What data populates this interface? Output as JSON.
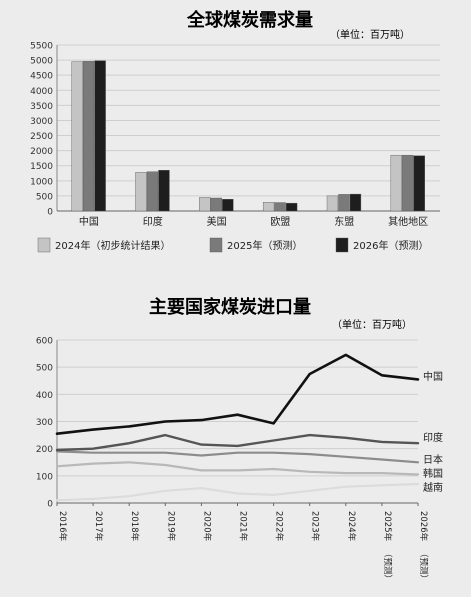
{
  "chart_data": [
    {
      "type": "bar",
      "title": "全球煤炭需求量",
      "unit_note": "（单位：百万吨）",
      "categories": [
        "中国",
        "印度",
        "美国",
        "欧盟",
        "东盟",
        "其他地区"
      ],
      "ylim": [
        0,
        5500
      ],
      "yticks": [
        0,
        500,
        1000,
        1500,
        2000,
        2500,
        3000,
        3500,
        4000,
        4500,
        5000,
        5500
      ],
      "grid": true,
      "legend_position": "bottom",
      "series": [
        {
          "name": "2024年（初步统计结果）",
          "color": "#c4c4c4",
          "values": [
            4950,
            1280,
            450,
            290,
            500,
            1850
          ]
        },
        {
          "name": "2025年（预测）",
          "color": "#7a7a7a",
          "values": [
            4960,
            1300,
            430,
            280,
            550,
            1850
          ]
        },
        {
          "name": "2026年（预测）",
          "color": "#1e1e1e",
          "values": [
            4980,
            1350,
            390,
            260,
            560,
            1830
          ]
        }
      ]
    },
    {
      "type": "line",
      "title": "主要国家煤炭进口量",
      "unit_note": "（单位：百万吨）",
      "x": [
        "2016年",
        "2017年",
        "2018年",
        "2019年",
        "2020年",
        "2021年",
        "2022年",
        "2023年",
        "2024年",
        "2025年",
        "2026年"
      ],
      "x_notes": [
        "",
        "",
        "",
        "",
        "",
        "",
        "",
        "",
        "",
        "（预测）",
        "（预测）"
      ],
      "ylim": [
        0,
        600
      ],
      "yticks": [
        0,
        100,
        200,
        300,
        400,
        500,
        600
      ],
      "grid": true,
      "series": [
        {
          "name": "中国",
          "color": "#111111",
          "values": [
            255,
            270,
            282,
            300,
            305,
            325,
            293,
            475,
            545,
            470,
            455
          ]
        },
        {
          "name": "印度",
          "color": "#555555",
          "values": [
            195,
            200,
            220,
            250,
            215,
            210,
            230,
            250,
            240,
            225,
            220
          ]
        },
        {
          "name": "日本",
          "color": "#8c8c8c",
          "values": [
            190,
            185,
            185,
            185,
            175,
            185,
            185,
            180,
            170,
            160,
            150
          ]
        },
        {
          "name": "韩国",
          "color": "#b8b8b8",
          "values": [
            135,
            145,
            150,
            140,
            120,
            120,
            125,
            115,
            110,
            110,
            105
          ]
        },
        {
          "name": "越南",
          "color": "#dcdcdc",
          "values": [
            10,
            15,
            25,
            45,
            55,
            35,
            30,
            45,
            60,
            65,
            70
          ]
        }
      ]
    }
  ]
}
